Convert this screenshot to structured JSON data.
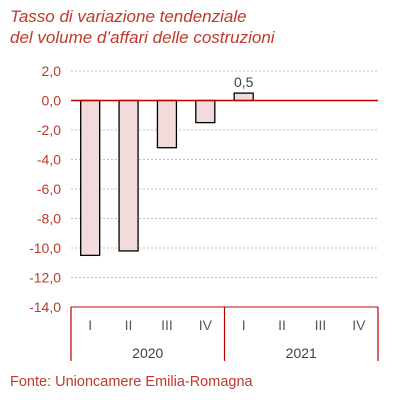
{
  "header": {
    "title_line1": "Tasso di variazione tendenziale",
    "title_line2": "del volume d’affari delle costruzioni"
  },
  "footer": {
    "source": "Fonte: Unioncamere Emilia-Romagna"
  },
  "colors": {
    "text": "#c0392b",
    "bar_fill": "#f2dcdb",
    "bar_stroke": "#000000",
    "zero_line": "#c00000",
    "grid": "#bfbfbf",
    "axis": "#c00000"
  },
  "chart_data": {
    "type": "bar",
    "title": "Tasso di variazione tendenziale del volume d’affari delle costruzioni",
    "categories": [
      "I",
      "II",
      "III",
      "IV",
      "I",
      "II",
      "III",
      "IV"
    ],
    "groups": [
      {
        "label": "2020",
        "categories": [
          "I",
          "II",
          "III",
          "IV"
        ]
      },
      {
        "label": "2021",
        "categories": [
          "I",
          "II",
          "III",
          "IV"
        ]
      }
    ],
    "values": [
      -10.5,
      -10.2,
      -3.2,
      -1.5,
      0.5,
      null,
      null,
      null
    ],
    "data_labels": [
      "",
      "",
      "",
      "",
      "0,5",
      "",
      "",
      ""
    ],
    "ylim": [
      -14,
      2
    ],
    "yticks": [
      2,
      0,
      -2,
      -4,
      -6,
      -8,
      -10,
      -12,
      -14
    ],
    "ytick_labels": [
      "2,0",
      "0,0",
      "-2,0",
      "-4,0",
      "-6,0",
      "-8,0",
      "-10,0",
      "-12,0",
      "-14,0"
    ],
    "grid": true,
    "legend": "none"
  }
}
